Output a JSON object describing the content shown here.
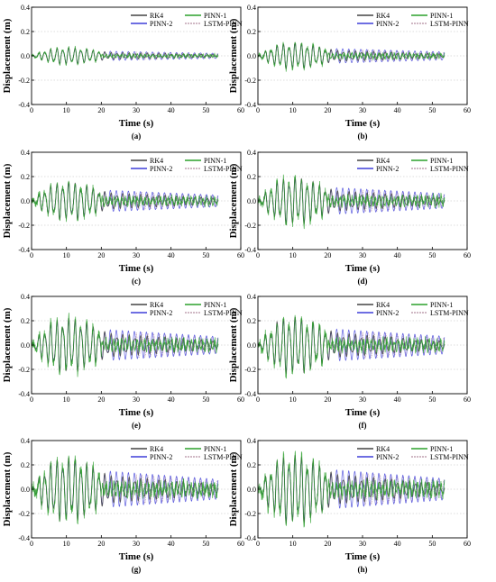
{
  "chart_data": {
    "type": "line",
    "xlabel": "Time (s)",
    "ylabel": "Displacement (m)",
    "xlim": [
      0,
      60
    ],
    "ylim": [
      -0.4,
      0.4
    ],
    "xticks": [
      "0",
      "10",
      "20",
      "30",
      "40",
      "50",
      "60"
    ],
    "yticks": [
      "0.4",
      "0.2",
      "0.0",
      "-0.2",
      "-0.4"
    ],
    "grid": "dotted",
    "legend_placement": "top-right",
    "series": [
      {
        "name": "RK4",
        "color": "#444444"
      },
      {
        "name": "PINN-1",
        "color": "#2ca02c"
      },
      {
        "name": "PINN-2",
        "color": "#3f3fd9"
      },
      {
        "name": "LSTM-PINN",
        "color": "#c0a0b0"
      }
    ],
    "panels": [
      {
        "label": "(a)",
        "t_end": 53.5,
        "peak_amplitude": 0.07
      },
      {
        "label": "(b)",
        "t_end": 53.5,
        "peak_amplitude": 0.11
      },
      {
        "label": "(c)",
        "t_end": 53.5,
        "peak_amplitude": 0.16
      },
      {
        "label": "(d)",
        "t_end": 53.5,
        "peak_amplitude": 0.2
      },
      {
        "label": "(e)",
        "t_end": 53.5,
        "peak_amplitude": 0.23
      },
      {
        "label": "(f)",
        "t_end": 53.5,
        "peak_amplitude": 0.24
      },
      {
        "label": "(g)",
        "t_end": 53.5,
        "peak_amplitude": 0.27
      },
      {
        "label": "(h)",
        "t_end": 53.5,
        "peak_amplitude": 0.29
      }
    ]
  }
}
